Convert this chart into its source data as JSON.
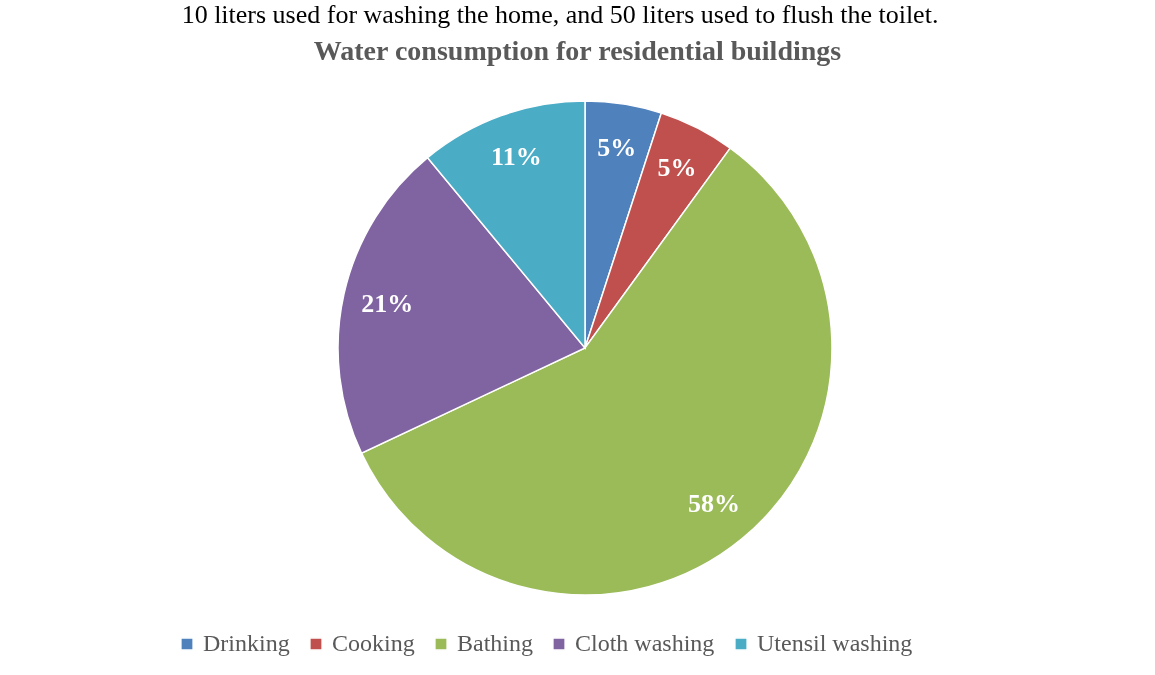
{
  "chart_data": {
    "type": "pie",
    "title": "Water consumption for residential buildings",
    "annotations": [
      "10 liters used for washing the home, and 50 liters used to flush the toilet."
    ],
    "categories": [
      "Drinking",
      "Cooking",
      "Bathing",
      "Cloth washing",
      "Utensil washing"
    ],
    "values": [
      5,
      5,
      58,
      21,
      11
    ],
    "value_labels": [
      "5%",
      "5%",
      "58%",
      "21%",
      "11%"
    ],
    "colors": [
      "#4f81bd",
      "#c0504d",
      "#9bbb59",
      "#8064a2",
      "#4bacc6"
    ],
    "legend": "bottom"
  }
}
